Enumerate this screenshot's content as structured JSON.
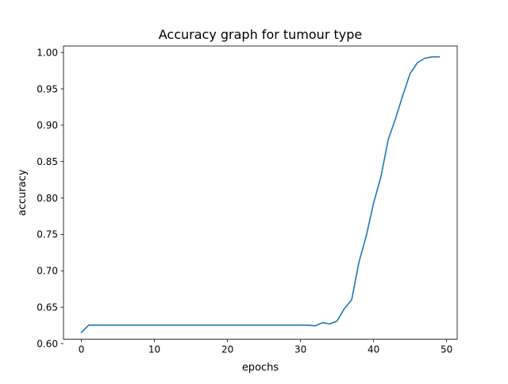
{
  "chart_data": {
    "type": "line",
    "title": "Accuracy graph for tumour type",
    "xlabel": "epochs",
    "ylabel": "accuracy",
    "xlim": [
      -2.45,
      51.45
    ],
    "ylim": [
      0.6059,
      1.0089
    ],
    "xticks": [
      0,
      10,
      20,
      30,
      40,
      50
    ],
    "yticks": [
      0.6,
      0.65,
      0.7,
      0.75,
      0.8,
      0.85,
      0.9,
      0.95,
      1.0
    ],
    "ytick_labels": [
      "0.60",
      "0.65",
      "0.70",
      "0.75",
      "0.80",
      "0.85",
      "0.90",
      "0.95",
      "1.00"
    ],
    "grid": false,
    "color": "#1f77b4",
    "series": [
      {
        "x": [
          0,
          1,
          2,
          3,
          4,
          5,
          6,
          7,
          8,
          9,
          10,
          11,
          12,
          13,
          14,
          15,
          16,
          17,
          18,
          19,
          20,
          21,
          22,
          23,
          24,
          25,
          26,
          27,
          28,
          29,
          30,
          31,
          32,
          33,
          34,
          35,
          36,
          37,
          38,
          39,
          40,
          41,
          42,
          43,
          44,
          45,
          46,
          47,
          48,
          49
        ],
        "values": [
          0.6153,
          0.6253,
          0.6253,
          0.6253,
          0.6253,
          0.6253,
          0.6253,
          0.6253,
          0.6253,
          0.6253,
          0.6253,
          0.6253,
          0.6253,
          0.6253,
          0.6253,
          0.6253,
          0.6253,
          0.6253,
          0.6253,
          0.6253,
          0.6253,
          0.6253,
          0.6253,
          0.6253,
          0.6253,
          0.6253,
          0.6253,
          0.6253,
          0.6253,
          0.6253,
          0.6253,
          0.6253,
          0.6243,
          0.6287,
          0.627,
          0.631,
          0.648,
          0.66,
          0.712,
          0.748,
          0.793,
          0.829,
          0.88,
          0.909,
          0.941,
          0.971,
          0.986,
          0.992,
          0.994,
          0.994
        ]
      }
    ]
  }
}
